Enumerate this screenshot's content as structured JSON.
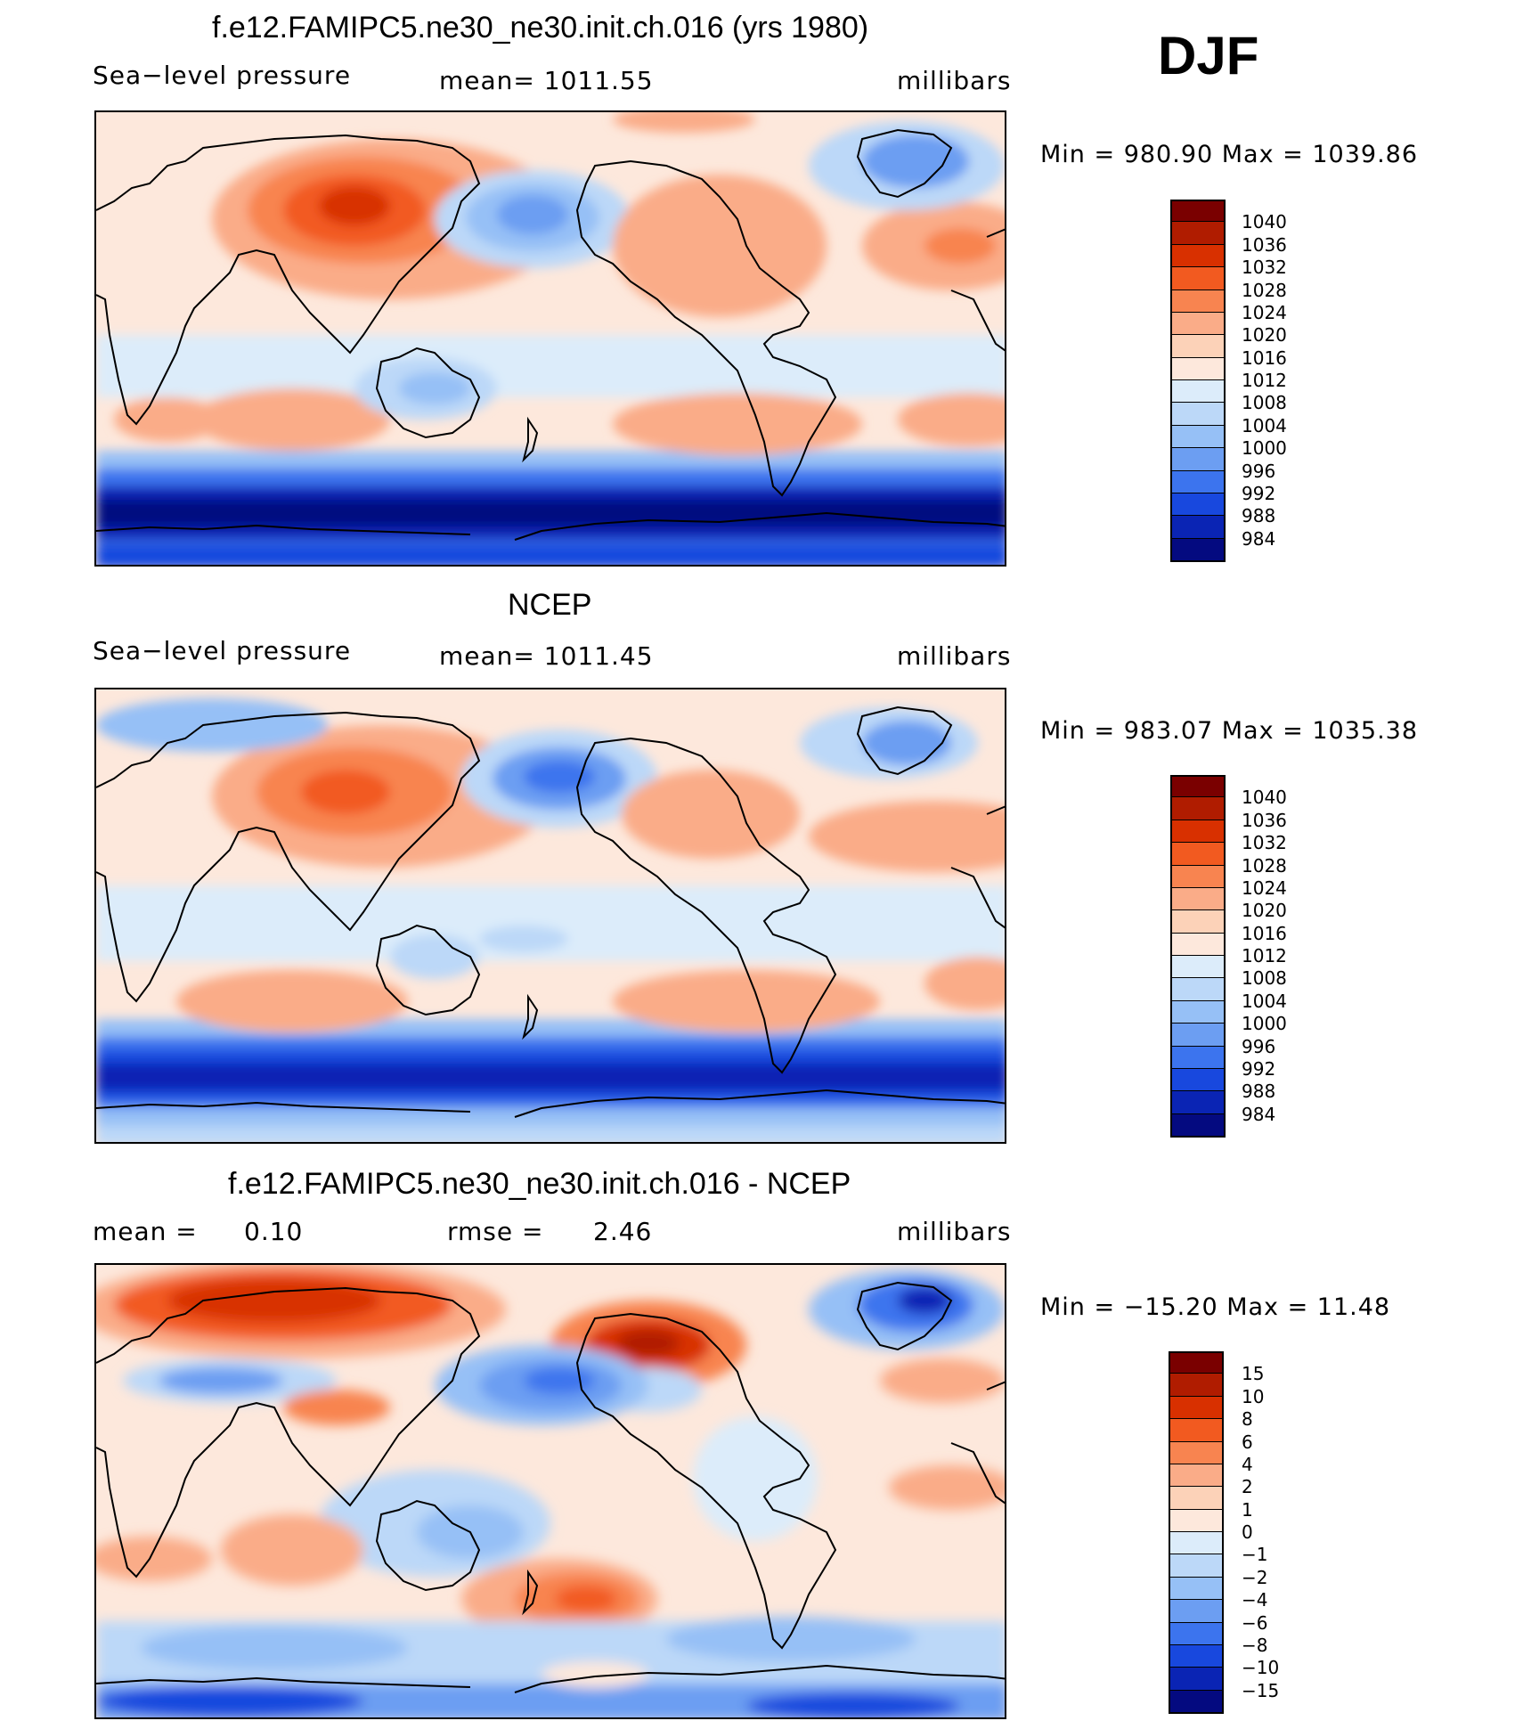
{
  "season": "DJF",
  "units": "millibars",
  "panels": [
    {
      "title": "f.e12.FAMIPC5.ne30_ne30.init.ch.016 (yrs 1980)",
      "left_label": "Sea−level pressure",
      "mid_label": "mean=  1011.55",
      "right_label": "millibars",
      "minmax": "Min  =  980.90  Max  =  1039.86"
    },
    {
      "title": "NCEP",
      "left_label": "Sea−level pressure",
      "mid_label": "mean=  1011.45",
      "right_label": "millibars",
      "minmax": "Min  =  983.07  Max  =  1035.38"
    },
    {
      "title": "f.e12.FAMIPC5.ne30_ne30.init.ch.016 - NCEP",
      "left_label": "mean  =",
      "left_value": "0.10",
      "mid_label": "rmse  =",
      "mid_value": "2.46",
      "right_label": "millibars",
      "minmax": "Min  =  −15.20  Max  =     11.48"
    }
  ],
  "colorbars": {
    "pressure": {
      "labels": [
        "1040",
        "1036",
        "1032",
        "1028",
        "1024",
        "1020",
        "1016",
        "1012",
        "1008",
        "1004",
        "1000",
        "996",
        "992",
        "988",
        "984"
      ],
      "colors": [
        "#7a0000",
        "#b01c00",
        "#d83000",
        "#f25a20",
        "#f88450",
        "#faac88",
        "#fcd2b8",
        "#fde8dc",
        "#dcecfa",
        "#bcd8f8",
        "#96c0f6",
        "#6c9ef2",
        "#3c74ee",
        "#1848de",
        "#0a24b4",
        "#040a80"
      ]
    },
    "difference": {
      "labels": [
        "15",
        "10",
        "8",
        "6",
        "4",
        "2",
        "1",
        "0",
        "−1",
        "−2",
        "−4",
        "−6",
        "−8",
        "−10",
        "−15"
      ],
      "colors": [
        "#7a0000",
        "#b01c00",
        "#d83000",
        "#f25a20",
        "#f88450",
        "#faac88",
        "#fcd2b8",
        "#fde8dc",
        "#dcecfa",
        "#bcd8f8",
        "#96c0f6",
        "#6c9ef2",
        "#3c74ee",
        "#1848de",
        "#0a24b4",
        "#040a80"
      ]
    }
  }
}
